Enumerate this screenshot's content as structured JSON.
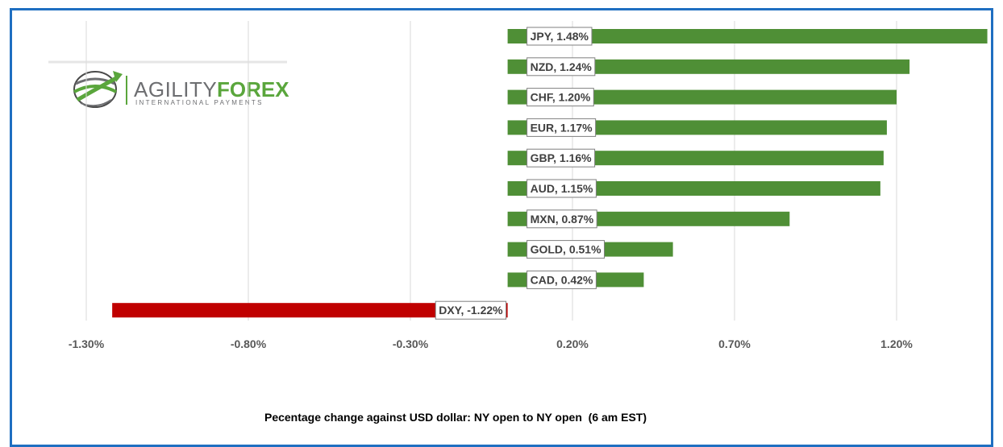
{
  "colors": {
    "frame": "#1f6fc1",
    "positive": "#4f8f36",
    "negative": "#c00000",
    "grid": "#d9d9d9",
    "label_border": "#7f7f7f",
    "tick_text": "#595959",
    "logo_gray": "#6d6e71",
    "logo_green": "#5aa63c"
  },
  "logo": {
    "word_gray": "AGILITY",
    "word_green": "FOREX",
    "tagline": "INTERNATIONAL PAYMENTS",
    "icon": "globe-swoosh-icon"
  },
  "chart_data": {
    "type": "bar",
    "orientation": "horizontal",
    "xlabel": "Pecentage change against USD dollar: NY open to NY open  (6 am EST)",
    "xlim": [
      -1.3,
      1.45
    ],
    "xticks": [
      -1.3,
      -0.8,
      -0.3,
      0.2,
      0.7,
      1.2
    ],
    "xtick_labels": [
      "-1.30%",
      "-0.80%",
      "-0.30%",
      "0.20%",
      "0.70%",
      "1.20%"
    ],
    "grid": "vertical",
    "legend": "none",
    "categories": [
      "JPY",
      "NZD",
      "CHF",
      "EUR",
      "GBP",
      "AUD",
      "MXN",
      "GOLD",
      "CAD",
      "DXY"
    ],
    "values": [
      1.48,
      1.24,
      1.2,
      1.17,
      1.16,
      1.15,
      0.87,
      0.51,
      0.42,
      -1.22
    ],
    "data_labels": [
      "JPY, 1.48%",
      "NZD, 1.24%",
      "CHF, 1.20%",
      "EUR, 1.17%",
      "GBP, 1.16%",
      "AUD, 1.15%",
      "MXN, 0.87%",
      "GOLD, 0.51%",
      "CAD, 0.42%",
      "DXY, -1.22%"
    ]
  }
}
